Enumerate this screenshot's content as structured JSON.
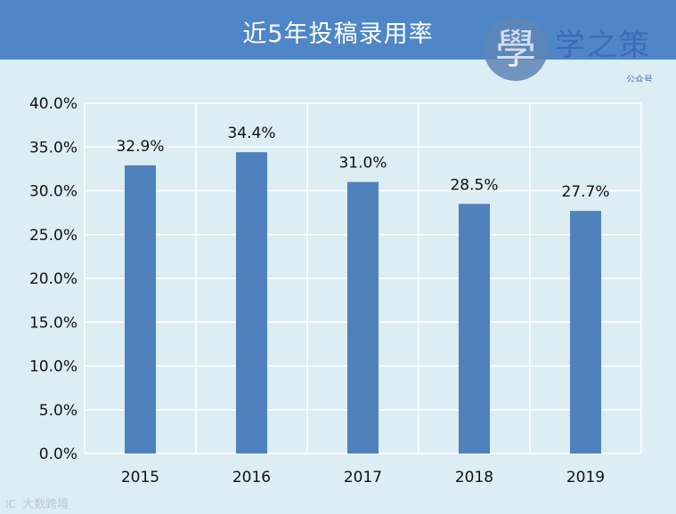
{
  "header": {
    "title": "近5年投稿录用率"
  },
  "logo": {
    "glyph": "學",
    "name": "学之策",
    "subtitle": "公众号"
  },
  "watermark": {
    "icon": "camera-icon",
    "icon_text": "IC",
    "text": "大数跨境"
  },
  "colors": {
    "bar": "#4f81bd",
    "background": "#dcedf4",
    "grid": "#ffffff",
    "title_bar": "#4e86c8"
  },
  "chart_data": {
    "type": "bar",
    "categories": [
      "2015",
      "2016",
      "2017",
      "2018",
      "2019"
    ],
    "values": [
      32.9,
      34.4,
      31.0,
      28.5,
      27.7
    ],
    "data_labels": [
      "32.9%",
      "34.4%",
      "31.0%",
      "28.5%",
      "27.7%"
    ],
    "y_ticks": [
      "0.0%",
      "5.0%",
      "10.0%",
      "15.0%",
      "20.0%",
      "25.0%",
      "30.0%",
      "35.0%",
      "40.0%"
    ],
    "ylim": [
      0,
      40
    ],
    "title": "近5年投稿录用率",
    "xlabel": "",
    "ylabel": "",
    "grid": true,
    "legend": "none"
  }
}
